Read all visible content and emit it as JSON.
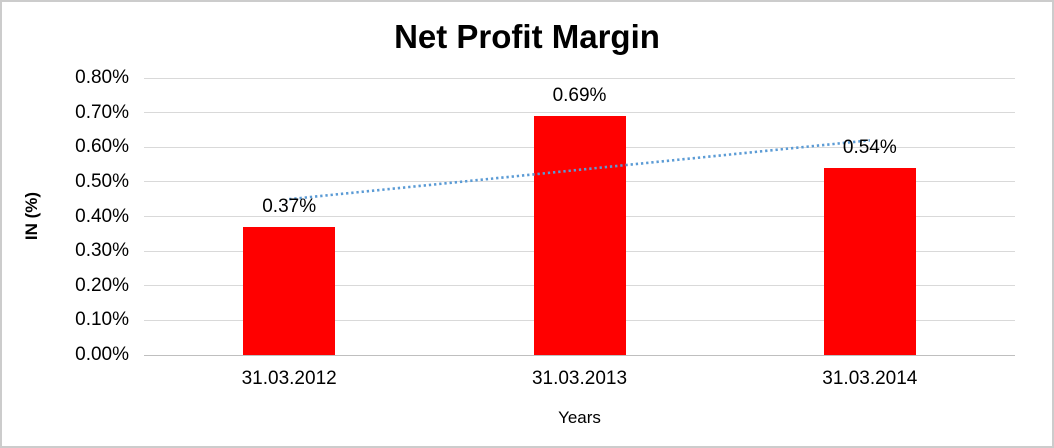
{
  "chart_data": {
    "type": "bar",
    "title": "Net Profit Margin",
    "categories": [
      "31.03.2012",
      "31.03.2013",
      "31.03.2014"
    ],
    "series": [
      {
        "name": "Net Profit Margin",
        "values": [
          0.37,
          0.69,
          0.54
        ]
      }
    ],
    "data_labels": [
      "0.37%",
      "0.69%",
      "0.54%"
    ],
    "xlabel": "Years",
    "ylabel": "IN (%)",
    "ylim": [
      0,
      0.8
    ],
    "ytick_step": 0.1,
    "ytick_labels": [
      "0.00%",
      "0.10%",
      "0.20%",
      "0.30%",
      "0.40%",
      "0.50%",
      "0.60%",
      "0.70%",
      "0.80%"
    ],
    "grid": true,
    "legend": false,
    "bar_color": "#FF0000",
    "trendline": {
      "type": "linear",
      "style": "dotted",
      "color": "#5B9BD5",
      "start_pct": 0.45,
      "end_pct": 0.62
    }
  },
  "colors": {
    "bar": "#FF0000",
    "trendline": "#5B9BD5",
    "gridline": "#D9D9D9",
    "axis_line": "#BFBFBF",
    "text": "#000000",
    "frame_border": "#CCCCCC",
    "background": "#FFFFFF"
  }
}
